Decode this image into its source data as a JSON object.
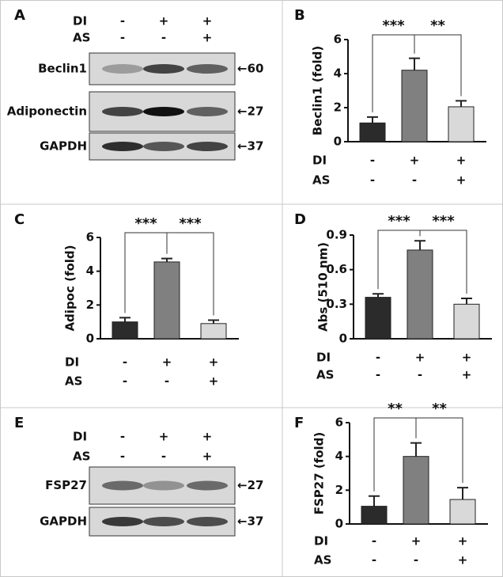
{
  "blots": [
    {
      "panel": "A",
      "conditions": [
        {
          "name": "DI",
          "labels": [
            "-",
            "+",
            "+"
          ]
        },
        {
          "name": "AS",
          "labels": [
            "-",
            "-",
            "+"
          ]
        }
      ],
      "bands": [
        {
          "label": "Beclin1",
          "marker": "←60"
        },
        {
          "label": "Adiponectin",
          "marker": "←27"
        },
        {
          "label": "GAPDH",
          "marker": "←37"
        }
      ]
    },
    {
      "panel": "E",
      "conditions": [
        {
          "name": "DI",
          "labels": [
            "-",
            "+",
            "+"
          ]
        },
        {
          "name": "AS",
          "labels": [
            "-",
            "-",
            "+"
          ]
        }
      ],
      "bands": [
        {
          "label": "FSP27",
          "marker": "←27"
        },
        {
          "label": "GAPDH",
          "marker": "←37"
        }
      ]
    }
  ],
  "chart_data": [
    {
      "type": "bar",
      "panel": "B",
      "ylabel": "Beclin1 (fold)",
      "conditions": [
        {
          "name": "DI",
          "labels": [
            "-",
            "+",
            "+"
          ]
        },
        {
          "name": "AS",
          "labels": [
            "-",
            "-",
            "+"
          ]
        }
      ],
      "values": [
        1.1,
        4.2,
        2.05
      ],
      "errors": [
        0.35,
        0.7,
        0.35
      ],
      "colors": [
        "#2b2b2b",
        "#808080",
        "#d9d9d9"
      ],
      "ylim": [
        0,
        6
      ],
      "yticks": [
        0,
        2,
        4,
        6
      ],
      "annotations": [
        "***",
        "**"
      ]
    },
    {
      "type": "bar",
      "panel": "C",
      "ylabel": "Adipoc (fold)",
      "conditions": [
        {
          "name": "DI",
          "labels": [
            "-",
            "+",
            "+"
          ]
        },
        {
          "name": "AS",
          "labels": [
            "-",
            "-",
            "+"
          ]
        }
      ],
      "values": [
        1.0,
        4.55,
        0.9
      ],
      "errors": [
        0.25,
        0.2,
        0.2
      ],
      "colors": [
        "#2b2b2b",
        "#808080",
        "#d9d9d9"
      ],
      "ylim": [
        0,
        6
      ],
      "yticks": [
        0,
        2,
        4,
        6
      ],
      "annotations": [
        "***",
        "***"
      ]
    },
    {
      "type": "bar",
      "panel": "D",
      "ylabel": "Abs  (510 nm)",
      "conditions": [
        {
          "name": "DI",
          "labels": [
            "-",
            "+",
            "+"
          ]
        },
        {
          "name": "AS",
          "labels": [
            "-",
            "-",
            "+"
          ]
        }
      ],
      "values": [
        0.36,
        0.77,
        0.3
      ],
      "errors": [
        0.03,
        0.08,
        0.05
      ],
      "colors": [
        "#2b2b2b",
        "#808080",
        "#d9d9d9"
      ],
      "ylim": [
        0,
        0.9
      ],
      "yticks": [
        0,
        0.3,
        0.6,
        0.9
      ],
      "annotations": [
        "***",
        "***"
      ]
    },
    {
      "type": "bar",
      "panel": "F",
      "ylabel": "FSP27 (fold)",
      "conditions": [
        {
          "name": "DI",
          "labels": [
            "-",
            "+",
            "+"
          ]
        },
        {
          "name": "AS",
          "labels": [
            "-",
            "-",
            "+"
          ]
        }
      ],
      "values": [
        1.05,
        4.0,
        1.45
      ],
      "errors": [
        0.6,
        0.8,
        0.7
      ],
      "colors": [
        "#2b2b2b",
        "#808080",
        "#d9d9d9"
      ],
      "ylim": [
        0,
        6
      ],
      "yticks": [
        0,
        2,
        4,
        6
      ],
      "annotations": [
        "**",
        "**"
      ]
    }
  ]
}
